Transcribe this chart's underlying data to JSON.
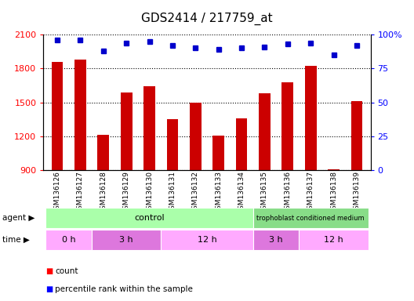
{
  "title": "GDS2414 / 217759_at",
  "samples": [
    "GSM136126",
    "GSM136127",
    "GSM136128",
    "GSM136129",
    "GSM136130",
    "GSM136131",
    "GSM136132",
    "GSM136133",
    "GSM136134",
    "GSM136135",
    "GSM136136",
    "GSM136137",
    "GSM136138",
    "GSM136139"
  ],
  "counts": [
    1855,
    1880,
    1215,
    1590,
    1640,
    1350,
    1500,
    1205,
    1360,
    1580,
    1680,
    1820,
    910,
    1510
  ],
  "percentile": [
    96,
    96,
    88,
    94,
    95,
    92,
    90,
    89,
    90,
    91,
    93,
    94,
    85,
    92
  ],
  "ymin": 900,
  "ymax": 2100,
  "yticks": [
    900,
    1200,
    1500,
    1800,
    2100
  ],
  "yright_ticks": [
    0,
    25,
    50,
    75,
    100
  ],
  "yright_labels": [
    "0",
    "25",
    "50",
    "75",
    "100%"
  ],
  "bar_color": "#cc0000",
  "dot_color": "#0000cc",
  "bar_width": 0.5,
  "agent_ctrl_color": "#aaffaa",
  "agent_tcm_color": "#88dd88",
  "time_color1": "#ffaaff",
  "time_color2": "#dd77dd",
  "title_fontsize": 11,
  "tick_fontsize": 8,
  "time_groups": [
    {
      "label": "0 h",
      "start": 0,
      "end": 2,
      "color": "#ffaaff"
    },
    {
      "label": "3 h",
      "start": 2,
      "end": 5,
      "color": "#dd77dd"
    },
    {
      "label": "12 h",
      "start": 5,
      "end": 9,
      "color": "#ffaaff"
    },
    {
      "label": "3 h",
      "start": 9,
      "end": 11,
      "color": "#dd77dd"
    },
    {
      "label": "12 h",
      "start": 11,
      "end": 14,
      "color": "#ffaaff"
    }
  ]
}
